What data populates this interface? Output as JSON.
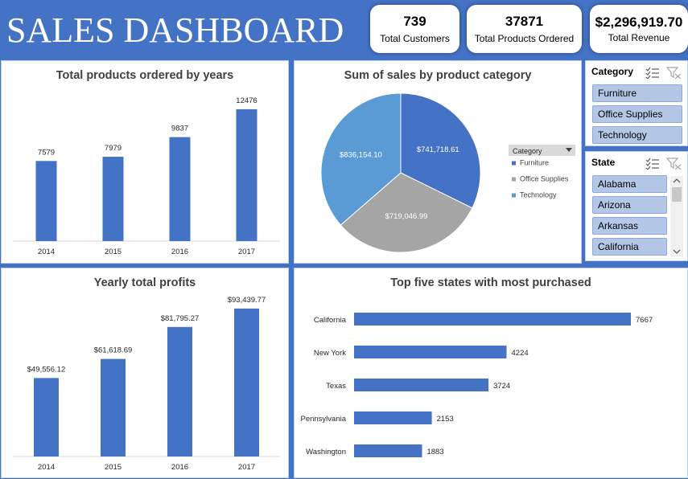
{
  "header": {
    "title": "SALES DASHBOARD"
  },
  "kpis": {
    "customers": {
      "value": "739",
      "label": "Total Customers"
    },
    "products": {
      "value": "37871",
      "label": "Total Products Ordered"
    },
    "revenue": {
      "value": "$2,296,919.70",
      "label": "Total Revenue"
    }
  },
  "charts": {
    "years": {
      "title": "Total products ordered by years"
    },
    "pie": {
      "title": "Sum of sales by product category",
      "legend_header": "Category"
    },
    "profits": {
      "title": "Yearly total profits"
    },
    "states": {
      "title": "Top five states with most purchased"
    }
  },
  "slicers": {
    "category": {
      "title": "Category",
      "items": [
        "Furniture",
        "Office Supplies",
        "Technology"
      ]
    },
    "state": {
      "title": "State",
      "items": [
        "Alabama",
        "Arizona",
        "Arkansas",
        "California"
      ]
    }
  },
  "colors": {
    "accent": "#4472c4",
    "furniture": "#4472c4",
    "office_supplies": "#a5a5a5",
    "technology": "#5b9bd5",
    "slicer_item": "#b4c7e7"
  },
  "chart_data": [
    {
      "type": "bar",
      "title": "Total products ordered by years",
      "categories": [
        "2014",
        "2015",
        "2016",
        "2017"
      ],
      "values": [
        7579,
        7979,
        9837,
        12476
      ],
      "data_labels": [
        "7579",
        "7979",
        "9837",
        "12476"
      ],
      "ylim": [
        0,
        13000
      ]
    },
    {
      "type": "pie",
      "title": "Sum of sales by product category",
      "categories": [
        "Furniture",
        "Office Supplies",
        "Technology"
      ],
      "values": [
        741718.61,
        719046.99,
        836154.1
      ],
      "data_labels": [
        "$741,718.61",
        "$719,046.99",
        "$836,154.10"
      ],
      "legend": "right"
    },
    {
      "type": "bar",
      "title": "Yearly total profits",
      "categories": [
        "2014",
        "2015",
        "2016",
        "2017"
      ],
      "values": [
        49556.12,
        61618.69,
        81795.27,
        93439.77
      ],
      "data_labels": [
        "$49,556.12",
        "$61,618.69",
        "$81,795.27",
        "$93,439.77"
      ],
      "ylim": [
        0,
        100000
      ]
    },
    {
      "type": "bar",
      "orientation": "horizontal",
      "title": "Top five states with most purchased",
      "categories": [
        "California",
        "New York",
        "Texas",
        "Pennsylvania",
        "Washington"
      ],
      "values": [
        7667,
        4224,
        3724,
        2153,
        1883
      ],
      "data_labels": [
        "7667",
        "4224",
        "3724",
        "2153",
        "1883"
      ],
      "xlim": [
        0,
        8000
      ]
    }
  ]
}
